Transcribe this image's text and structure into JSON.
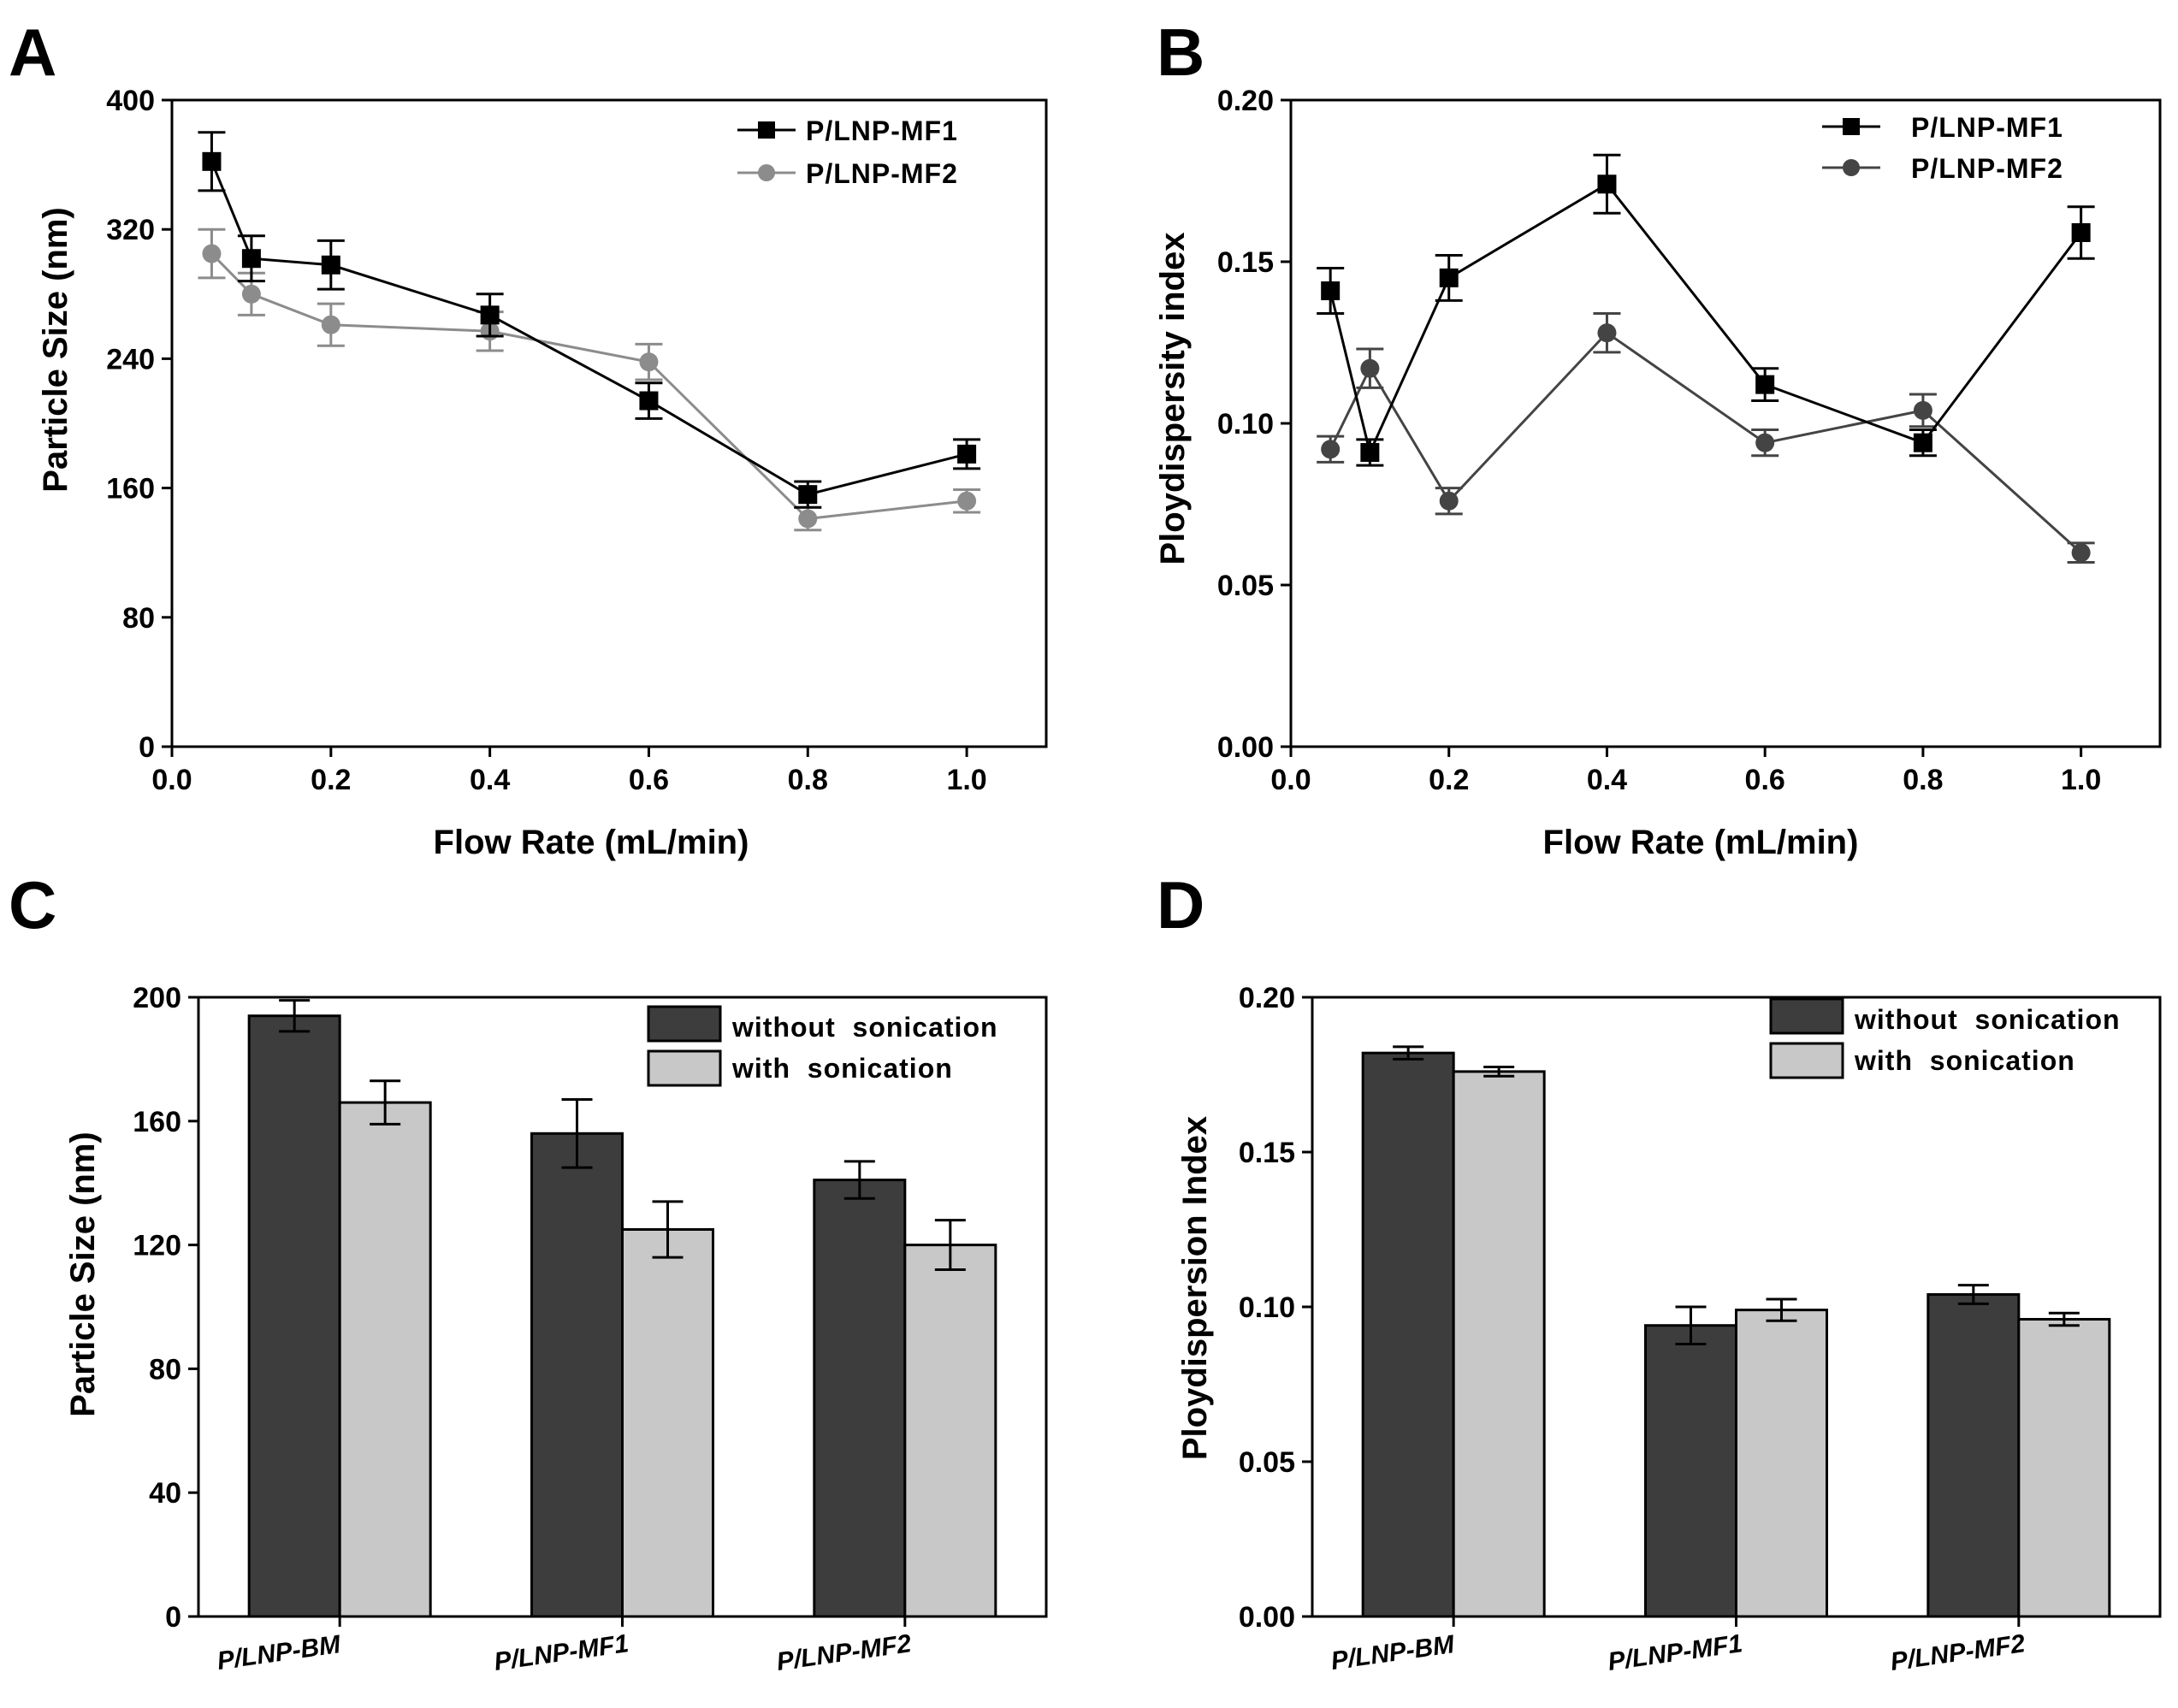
{
  "chart_data": [
    {
      "panel": "A",
      "type": "line",
      "xlabel": "Flow Rate (mL/min)",
      "ylabel": "Particle Size (nm)",
      "xlim": [
        0.0,
        1.1
      ],
      "ylim": [
        0,
        400
      ],
      "xticks": [
        0.0,
        0.2,
        0.4,
        0.6,
        0.8,
        1.0
      ],
      "xtick_labels": [
        "0.0",
        "0.2",
        "0.4",
        "0.6",
        "0.8",
        "1.0"
      ],
      "yticks": [
        0,
        80,
        160,
        240,
        320,
        400
      ],
      "ytick_labels": [
        "0",
        "80",
        "160",
        "240",
        "320",
        "400"
      ],
      "legend_position": "top-right",
      "x": [
        0.05,
        0.1,
        0.2,
        0.4,
        0.6,
        0.8,
        1.0
      ],
      "series": [
        {
          "name": "P/LNP-MF1",
          "marker": "square",
          "color": "#000000",
          "values": [
            362,
            302,
            298,
            267,
            214,
            156,
            181
          ],
          "errors": [
            18,
            14,
            15,
            13,
            11,
            8,
            9
          ]
        },
        {
          "name": "P/LNP-MF2",
          "marker": "circle",
          "color": "#8c8c8c",
          "values": [
            305,
            280,
            261,
            257,
            238,
            141,
            152
          ],
          "errors": [
            15,
            13,
            13,
            12,
            11,
            7,
            7
          ]
        }
      ]
    },
    {
      "panel": "B",
      "type": "line",
      "xlabel": "Flow Rate (mL/min)",
      "ylabel": "Ploydispersity index",
      "xlim": [
        0.0,
        1.1
      ],
      "ylim": [
        0.0,
        0.2
      ],
      "xticks": [
        0.0,
        0.2,
        0.4,
        0.6,
        0.8,
        1.0
      ],
      "xtick_labels": [
        "0.0",
        "0.2",
        "0.4",
        "0.6",
        "0.8",
        "1.0"
      ],
      "yticks": [
        0.0,
        0.05,
        0.1,
        0.15,
        0.2
      ],
      "ytick_labels": [
        "0.00",
        "0.05",
        "0.10",
        "0.15",
        "0.20"
      ],
      "legend_position": "top-right",
      "x": [
        0.05,
        0.1,
        0.2,
        0.4,
        0.6,
        0.8,
        1.0
      ],
      "series": [
        {
          "name": "P/LNP-MF1",
          "marker": "square",
          "color": "#000000",
          "values": [
            0.141,
            0.091,
            0.145,
            0.174,
            0.112,
            0.094,
            0.159
          ],
          "errors": [
            0.007,
            0.004,
            0.007,
            0.009,
            0.005,
            0.004,
            0.008
          ]
        },
        {
          "name": "P/LNP-MF2",
          "marker": "circle",
          "color": "#444444",
          "values": [
            0.092,
            0.117,
            0.076,
            0.128,
            0.094,
            0.104,
            0.06
          ],
          "errors": [
            0.004,
            0.006,
            0.004,
            0.006,
            0.004,
            0.005,
            0.003
          ]
        }
      ]
    },
    {
      "panel": "C",
      "type": "bar",
      "ylabel": "Particle Size (nm)",
      "ylim": [
        0,
        200
      ],
      "yticks": [
        0,
        40,
        80,
        120,
        160,
        200
      ],
      "ytick_labels": [
        "0",
        "40",
        "80",
        "120",
        "160",
        "200"
      ],
      "categories": [
        "P/LNP-BM",
        "P/LNP-MF1",
        "P/LNP-MF2"
      ],
      "legend_position": "top-right",
      "series": [
        {
          "name": "without  sonication",
          "color": "#3d3d3d",
          "values": [
            194,
            156,
            141
          ],
          "errors": [
            5,
            11,
            6
          ]
        },
        {
          "name": "with  sonication",
          "color": "#c8c8c8",
          "values": [
            166,
            125,
            120
          ],
          "errors": [
            7,
            9,
            8
          ]
        }
      ]
    },
    {
      "panel": "D",
      "type": "bar",
      "ylabel": "Ploydispersion Index",
      "ylim": [
        0.0,
        0.2
      ],
      "yticks": [
        0.0,
        0.05,
        0.1,
        0.15,
        0.2
      ],
      "ytick_labels": [
        "0.00",
        "0.05",
        "0.10",
        "0.15",
        "0.20"
      ],
      "categories": [
        "P/LNP-BM",
        "P/LNP-MF1",
        "P/LNP-MF2"
      ],
      "legend_position": "top-right",
      "series": [
        {
          "name": "without  sonication",
          "color": "#3d3d3d",
          "values": [
            0.182,
            0.094,
            0.104
          ],
          "errors": [
            0.002,
            0.006,
            0.003
          ]
        },
        {
          "name": "with  sonication",
          "color": "#c8c8c8",
          "values": [
            0.176,
            0.099,
            0.096
          ],
          "errors": [
            0.0015,
            0.0035,
            0.002
          ]
        }
      ]
    }
  ]
}
